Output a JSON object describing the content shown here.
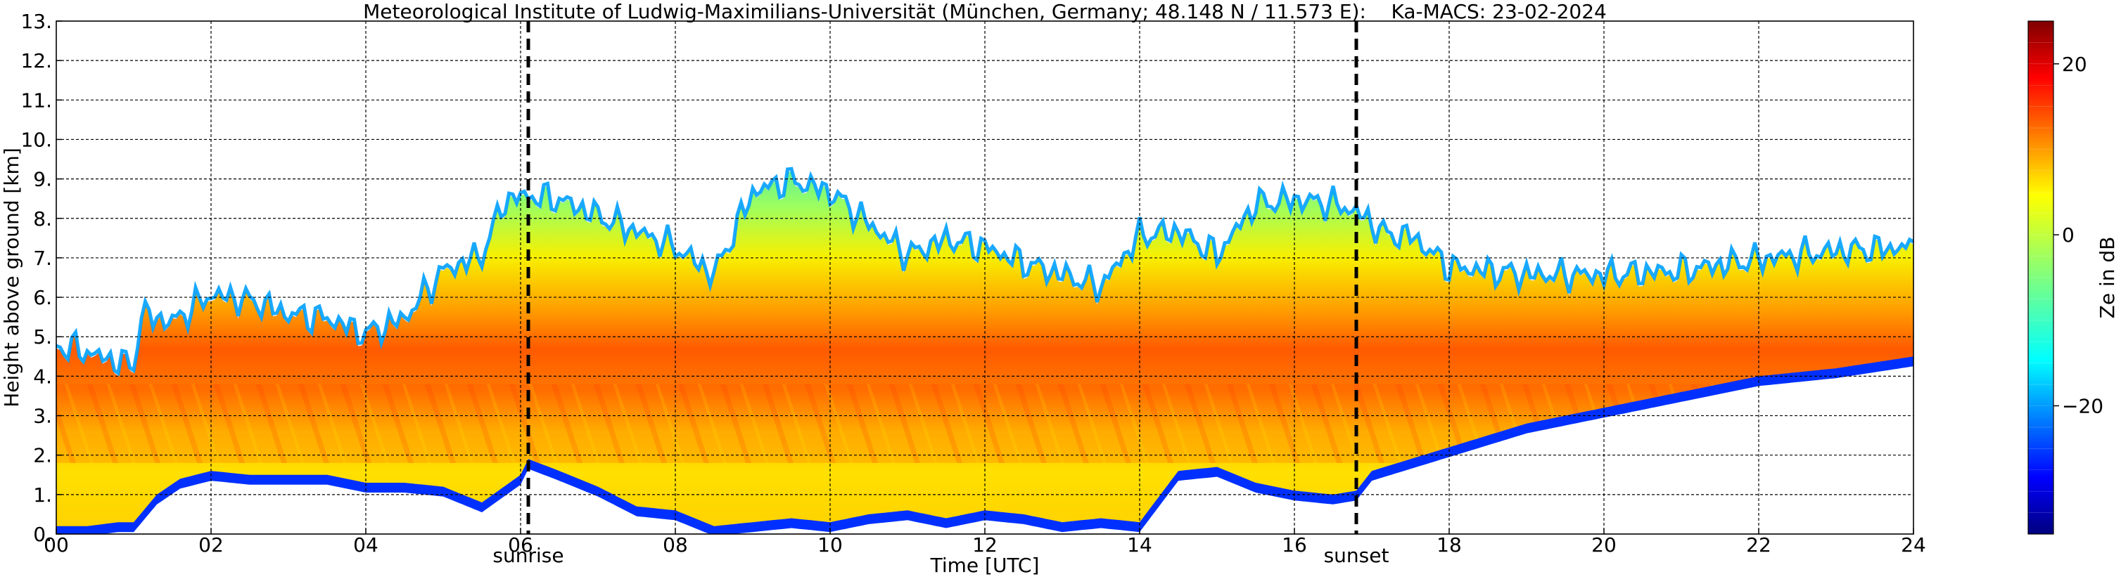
{
  "chart_data": {
    "type": "heatmap",
    "title": "Meteorological Institute of Ludwig-Maximilians-Universität (München, Germany; 48.148 N / 11.573 E):    Ka-MACS: 23-02-2024",
    "xlabel": "Time [UTC]",
    "ylabel": "Height above ground [km]",
    "xlim": [
      0,
      24
    ],
    "ylim": [
      0,
      13
    ],
    "x_ticks": [
      0,
      2,
      4,
      6,
      8,
      10,
      12,
      14,
      16,
      18,
      20,
      22,
      24
    ],
    "x_tick_labels": [
      "00",
      "02",
      "04",
      "06",
      "08",
      "10",
      "12",
      "14",
      "16",
      "18",
      "20",
      "22",
      "24"
    ],
    "y_ticks": [
      0,
      1,
      2,
      3,
      4,
      5,
      6,
      7,
      8,
      9,
      10,
      11,
      12,
      13
    ],
    "y_tick_labels": [
      "0.",
      "1.",
      "2.",
      "3.",
      "4.",
      "5.",
      "6.",
      "7.",
      "8.",
      "9.",
      "10.",
      "11.",
      "12.",
      "13."
    ],
    "grid": true,
    "events": [
      {
        "label": "sunrise",
        "time": 6.1
      },
      {
        "label": "sunset",
        "time": 16.8
      }
    ],
    "colorbar": {
      "label": "Ze in dB",
      "range": [
        -35,
        25
      ],
      "ticks": [
        -20,
        0,
        20
      ],
      "tick_labels": [
        "−20",
        "0",
        "20"
      ],
      "colormap": "jet"
    },
    "echo_top_km": {
      "time": [
        0,
        0.3,
        0.6,
        1.0,
        1.1,
        1.5,
        2.0,
        2.6,
        3.0,
        3.5,
        4.0,
        4.5,
        5.0,
        5.5,
        5.8,
        6.1,
        6.5,
        7.0,
        7.5,
        8.0,
        8.5,
        9.0,
        9.5,
        10.0,
        10.5,
        11.0,
        11.5,
        12.0,
        12.5,
        13.0,
        13.5,
        14.0,
        14.5,
        15.0,
        15.5,
        16.0,
        16.5,
        16.8,
        17.2,
        17.5,
        18.0,
        19.0,
        20.0,
        21.0,
        22.0,
        23.0,
        24.0
      ],
      "height": [
        4.7,
        4.6,
        4.4,
        4.2,
        5.5,
        5.3,
        6.0,
        5.8,
        5.5,
        5.4,
        5.0,
        5.4,
        6.6,
        7.0,
        8.4,
        8.5,
        8.4,
        8.0,
        7.6,
        7.2,
        6.5,
        8.6,
        8.9,
        8.6,
        7.8,
        7.0,
        7.4,
        7.2,
        6.8,
        6.5,
        6.2,
        7.5,
        7.6,
        7.0,
        8.3,
        8.4,
        8.3,
        8.1,
        7.5,
        7.5,
        6.7,
        6.5,
        6.5,
        6.6,
        6.9,
        7.1,
        7.2
      ]
    },
    "echo_base_km": {
      "time": [
        0,
        0.4,
        0.8,
        1.0,
        1.3,
        1.6,
        2.0,
        2.5,
        3.0,
        3.5,
        4.0,
        4.5,
        5.0,
        5.5,
        6.0,
        6.1,
        6.5,
        7.0,
        7.5,
        8.0,
        8.5,
        9.0,
        9.5,
        10.0,
        10.5,
        11.0,
        11.5,
        12.0,
        12.5,
        13.0,
        13.5,
        14.0,
        14.5,
        15.0,
        15.5,
        16.0,
        16.5,
        16.8,
        17.0,
        17.5,
        18.0,
        19.0,
        20.0,
        21.0,
        22.0,
        23.0,
        24.0
      ],
      "height": [
        0.2,
        0.2,
        0.3,
        0.3,
        1.0,
        1.4,
        1.6,
        1.5,
        1.5,
        1.5,
        1.3,
        1.3,
        1.2,
        0.8,
        1.5,
        1.9,
        1.6,
        1.2,
        0.7,
        0.6,
        0.2,
        0.3,
        0.4,
        0.3,
        0.5,
        0.6,
        0.4,
        0.6,
        0.5,
        0.3,
        0.4,
        0.3,
        1.6,
        1.7,
        1.3,
        1.1,
        1.0,
        1.1,
        1.6,
        1.9,
        2.2,
        2.8,
        3.2,
        3.6,
        4.0,
        4.2,
        4.5
      ]
    },
    "core_layer_km": {
      "bottom": 1.8,
      "top": 3.8,
      "peak_dB": 15
    }
  }
}
